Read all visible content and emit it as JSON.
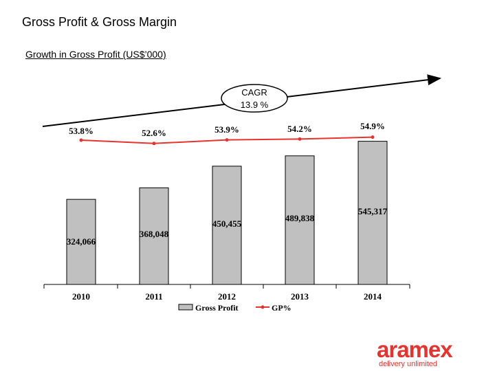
{
  "slide": {
    "title": "Gross Profit & Gross Margin",
    "subtitle": "Growth in Gross Profit (US$’000)"
  },
  "chart_data": {
    "type": "bar",
    "categories": [
      "2010",
      "2011",
      "2012",
      "2013",
      "2014"
    ],
    "series": [
      {
        "name": "Gross Profit",
        "type": "bar",
        "values": [
          324066,
          368048,
          450455,
          489838,
          545317
        ],
        "labels": [
          "324,066",
          "368,048",
          "450,455",
          "489,838",
          "545,317"
        ],
        "color": "#c0c0c0"
      },
      {
        "name": "GP%",
        "type": "line",
        "values": [
          53.8,
          52.6,
          53.9,
          54.2,
          54.9
        ],
        "labels": [
          "53.8%",
          "52.6%",
          "53.9%",
          "54.2%",
          "54.9%"
        ],
        "color": "#e8322d"
      }
    ],
    "annotation": {
      "text_line1": "CAGR",
      "text_line2": "13.9 %",
      "style": "ellipse on trend arrow"
    },
    "bar_ylim": [
      0,
      620000
    ],
    "line_ylim": [
      40,
      60
    ],
    "grid": false,
    "legend": "bottom"
  },
  "brand": {
    "name": "aramex",
    "tagline": "delivery unlimited",
    "color": "#e8322d"
  }
}
